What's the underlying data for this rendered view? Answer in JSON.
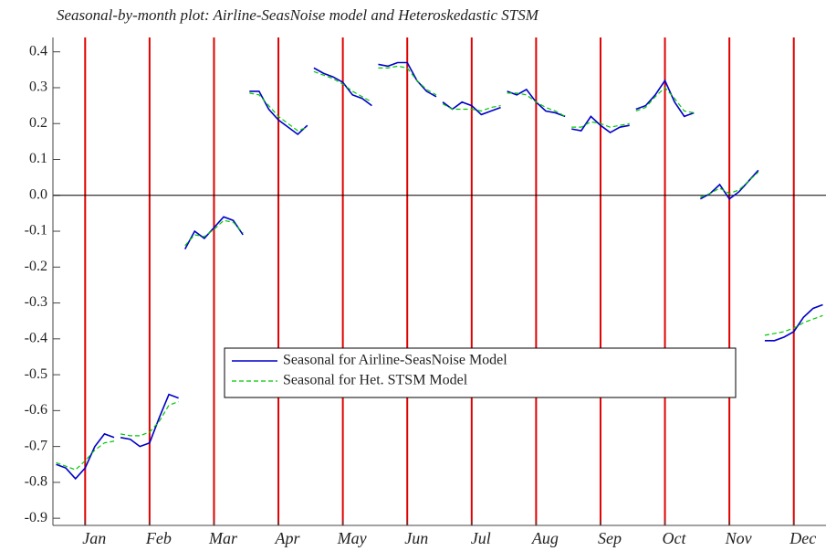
{
  "chart_data": {
    "type": "line",
    "title": "Seasonal-by-month plot: Airline-SeasNoise model and Heteroskedastic STSM",
    "x": [
      0.55,
      0.7,
      0.85,
      1,
      1.15,
      1.3,
      1.45,
      1.5,
      1.55,
      1.7,
      1.85,
      2,
      2.15,
      2.3,
      2.45,
      2.5,
      2.55,
      2.7,
      2.85,
      3,
      3.15,
      3.3,
      3.45,
      3.5,
      3.55,
      3.7,
      3.85,
      4,
      4.15,
      4.3,
      4.45,
      4.5,
      4.55,
      4.7,
      4.85,
      5,
      5.15,
      5.3,
      5.45,
      5.5,
      5.55,
      5.7,
      5.85,
      6,
      6.15,
      6.3,
      6.45,
      6.5,
      6.55,
      6.7,
      6.85,
      7,
      7.15,
      7.3,
      7.45,
      7.5,
      7.55,
      7.7,
      7.85,
      8,
      8.15,
      8.3,
      8.45,
      8.5,
      8.55,
      8.7,
      8.85,
      9,
      9.15,
      9.3,
      9.45,
      9.5,
      9.55,
      9.7,
      9.85,
      10,
      10.15,
      10.3,
      10.45,
      10.5,
      10.55,
      10.7,
      10.85,
      11,
      11.15,
      11.3,
      11.45,
      11.5,
      11.55,
      11.7,
      11.85,
      12,
      12.15,
      12.3,
      12.45
    ],
    "series": [
      {
        "name": "Seasonal for Airline-SeasNoise Model",
        "color": "#0000c8",
        "dash": false,
        "values": [
          -0.75,
          -0.76,
          -0.79,
          -0.76,
          -0.7,
          -0.665,
          -0.675,
          null,
          -0.675,
          -0.68,
          -0.7,
          -0.69,
          -0.62,
          -0.555,
          -0.565,
          null,
          -0.15,
          -0.1,
          -0.12,
          -0.09,
          -0.06,
          -0.07,
          -0.11,
          null,
          0.29,
          0.29,
          0.24,
          0.21,
          0.19,
          0.17,
          0.195,
          null,
          0.355,
          0.34,
          0.33,
          0.315,
          0.28,
          0.27,
          0.25,
          null,
          0.365,
          0.36,
          0.37,
          0.37,
          0.32,
          0.29,
          0.275,
          null,
          0.26,
          0.24,
          0.26,
          0.25,
          0.225,
          0.235,
          0.245,
          null,
          0.29,
          0.28,
          0.295,
          0.26,
          0.235,
          0.23,
          0.22,
          null,
          0.185,
          0.18,
          0.22,
          0.195,
          0.175,
          0.19,
          0.195,
          null,
          0.24,
          0.25,
          0.28,
          0.32,
          0.26,
          0.22,
          0.23,
          null,
          -0.01,
          0.005,
          0.03,
          -0.01,
          0.01,
          0.04,
          0.07,
          null,
          -0.405,
          -0.405,
          -0.395,
          -0.38,
          -0.34,
          -0.315,
          -0.305
        ]
      },
      {
        "name": "Seasonal for Het. STSM Model",
        "color": "#00c800",
        "dash": true,
        "values": [
          -0.745,
          -0.755,
          -0.765,
          -0.74,
          -0.71,
          -0.69,
          -0.685,
          null,
          -0.665,
          -0.67,
          -0.67,
          -0.66,
          -0.63,
          -0.585,
          -0.575,
          null,
          -0.14,
          -0.11,
          -0.115,
          -0.095,
          -0.07,
          -0.075,
          -0.105,
          null,
          0.285,
          0.28,
          0.25,
          0.22,
          0.2,
          0.18,
          0.19,
          null,
          0.345,
          0.335,
          0.325,
          0.31,
          0.29,
          0.275,
          0.26,
          null,
          0.355,
          0.355,
          0.36,
          0.355,
          0.32,
          0.295,
          0.28,
          null,
          0.255,
          0.24,
          0.24,
          0.24,
          0.235,
          0.245,
          0.25,
          null,
          0.285,
          0.285,
          0.28,
          0.26,
          0.245,
          0.235,
          0.22,
          null,
          0.19,
          0.19,
          0.205,
          0.2,
          0.19,
          0.195,
          0.2,
          null,
          0.235,
          0.245,
          0.275,
          0.3,
          0.27,
          0.235,
          0.23,
          null,
          -0.005,
          0.005,
          0.02,
          0.005,
          0.015,
          0.04,
          0.065,
          null,
          -0.39,
          -0.385,
          -0.38,
          -0.37,
          -0.355,
          -0.345,
          -0.335
        ]
      }
    ],
    "xlim": [
      0.5,
      12.5
    ],
    "xticks": [
      {
        "value": 1,
        "label": "Jan"
      },
      {
        "value": 2,
        "label": "Feb"
      },
      {
        "value": 3,
        "label": "Mar"
      },
      {
        "value": 4,
        "label": "Apr"
      },
      {
        "value": 5,
        "label": "May"
      },
      {
        "value": 6,
        "label": "Jun"
      },
      {
        "value": 7,
        "label": "Jul"
      },
      {
        "value": 8,
        "label": "Aug"
      },
      {
        "value": 9,
        "label": "Sep"
      },
      {
        "value": 10,
        "label": "Oct"
      },
      {
        "value": 11,
        "label": "Nov"
      },
      {
        "value": 12,
        "label": "Dec"
      }
    ],
    "ylim": [
      -0.92,
      0.44
    ],
    "yticks": [
      -0.9,
      -0.8,
      -0.7,
      -0.6,
      -0.5,
      -0.4,
      -0.3,
      -0.2,
      -0.1,
      {
        "value": 0,
        "label": "0.0"
      },
      0.1,
      0.2,
      0.3,
      0.4
    ],
    "xgrid": true,
    "xgrid_color": "#e00000",
    "legend": "center"
  }
}
